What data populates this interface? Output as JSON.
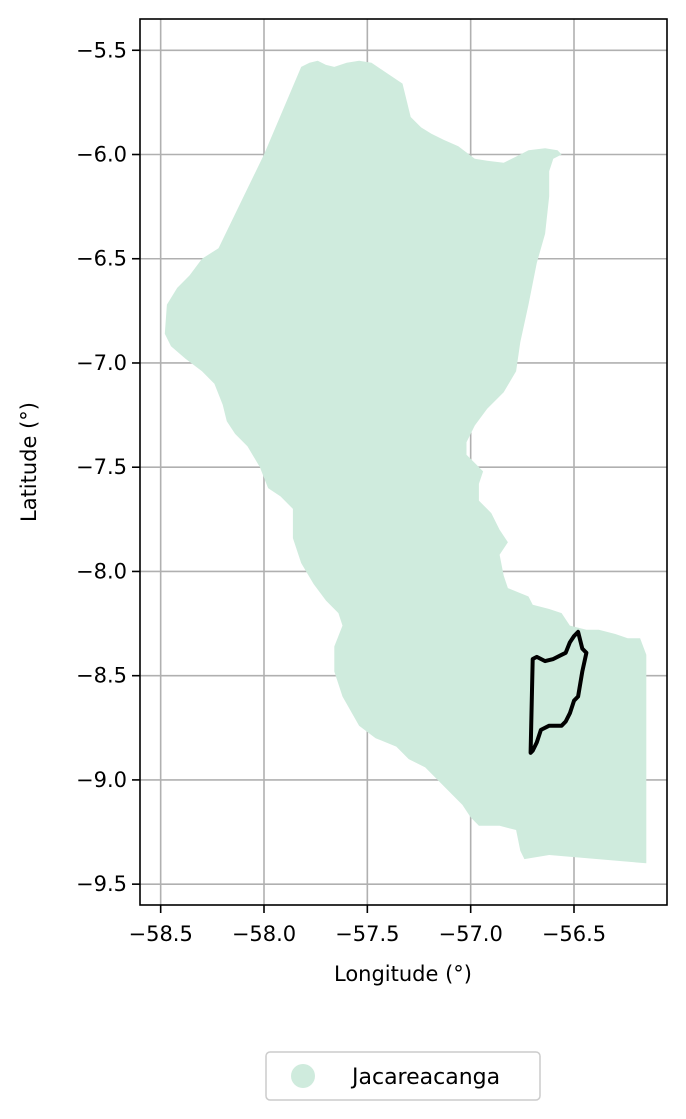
{
  "chart_data": {
    "type": "map",
    "xlabel": "Longitude (°)",
    "ylabel": "Latitude (°)",
    "xlim": [
      -58.6,
      -56.05
    ],
    "ylim": [
      -9.6,
      -5.35
    ],
    "xticks": [
      -58.5,
      -58.0,
      -57.5,
      -57.0,
      -56.5
    ],
    "xtick_labels": [
      "−58.5",
      "−58.0",
      "−57.5",
      "−57.0",
      "−56.5"
    ],
    "yticks": [
      -5.5,
      -6.0,
      -6.5,
      -7.0,
      -7.5,
      -8.0,
      -8.5,
      -9.0,
      -9.5
    ],
    "ytick_labels": [
      "−5.5",
      "−6.0",
      "−6.5",
      "−7.0",
      "−7.5",
      "−8.0",
      "−8.5",
      "−9.0",
      "−9.5"
    ],
    "grid": true,
    "legend_position": "bottom-center",
    "series": [
      {
        "name": "Jacareacanga",
        "kind": "filled-region",
        "color": "#cfebdd",
        "polygon": [
          [
            -57.82,
            -5.58
          ],
          [
            -57.78,
            -5.56
          ],
          [
            -57.74,
            -5.55
          ],
          [
            -57.7,
            -5.57
          ],
          [
            -57.66,
            -5.58
          ],
          [
            -57.6,
            -5.56
          ],
          [
            -57.54,
            -5.55
          ],
          [
            -57.48,
            -5.56
          ],
          [
            -57.42,
            -5.6
          ],
          [
            -57.33,
            -5.66
          ],
          [
            -57.29,
            -5.82
          ],
          [
            -57.24,
            -5.87
          ],
          [
            -57.19,
            -5.9
          ],
          [
            -57.13,
            -5.93
          ],
          [
            -57.06,
            -5.96
          ],
          [
            -56.98,
            -6.02
          ],
          [
            -56.92,
            -6.03
          ],
          [
            -56.84,
            -6.04
          ],
          [
            -56.76,
            -6.0
          ],
          [
            -56.72,
            -5.98
          ],
          [
            -56.64,
            -5.97
          ],
          [
            -56.58,
            -5.98
          ],
          [
            -56.56,
            -6.0
          ],
          [
            -56.6,
            -6.02
          ],
          [
            -56.62,
            -6.08
          ],
          [
            -56.62,
            -6.2
          ],
          [
            -56.64,
            -6.38
          ],
          [
            -56.68,
            -6.52
          ],
          [
            -56.72,
            -6.72
          ],
          [
            -56.76,
            -6.9
          ],
          [
            -56.78,
            -7.04
          ],
          [
            -56.84,
            -7.14
          ],
          [
            -56.92,
            -7.22
          ],
          [
            -56.98,
            -7.3
          ],
          [
            -57.02,
            -7.38
          ],
          [
            -57.02,
            -7.44
          ],
          [
            -56.98,
            -7.48
          ],
          [
            -56.94,
            -7.52
          ],
          [
            -56.96,
            -7.58
          ],
          [
            -56.96,
            -7.66
          ],
          [
            -56.9,
            -7.72
          ],
          [
            -56.86,
            -7.8
          ],
          [
            -56.82,
            -7.86
          ],
          [
            -56.86,
            -7.92
          ],
          [
            -56.84,
            -8.02
          ],
          [
            -56.82,
            -8.08
          ],
          [
            -56.72,
            -8.12
          ],
          [
            -56.7,
            -8.16
          ],
          [
            -56.62,
            -8.18
          ],
          [
            -56.56,
            -8.2
          ],
          [
            -56.52,
            -8.26
          ],
          [
            -56.44,
            -8.28
          ],
          [
            -56.38,
            -8.28
          ],
          [
            -56.3,
            -8.3
          ],
          [
            -56.24,
            -8.32
          ],
          [
            -56.18,
            -8.32
          ],
          [
            -56.15,
            -8.4
          ],
          [
            -56.15,
            -9.4
          ],
          [
            -56.62,
            -9.36
          ],
          [
            -56.74,
            -9.38
          ],
          [
            -56.76,
            -9.34
          ],
          [
            -56.78,
            -9.24
          ],
          [
            -56.86,
            -9.22
          ],
          [
            -56.96,
            -9.22
          ],
          [
            -57.0,
            -9.18
          ],
          [
            -57.04,
            -9.12
          ],
          [
            -57.12,
            -9.04
          ],
          [
            -57.16,
            -9.0
          ],
          [
            -57.22,
            -8.94
          ],
          [
            -57.3,
            -8.9
          ],
          [
            -57.36,
            -8.84
          ],
          [
            -57.46,
            -8.8
          ],
          [
            -57.54,
            -8.74
          ],
          [
            -57.62,
            -8.6
          ],
          [
            -57.66,
            -8.48
          ],
          [
            -57.66,
            -8.36
          ],
          [
            -57.62,
            -8.26
          ],
          [
            -57.64,
            -8.2
          ],
          [
            -57.7,
            -8.14
          ],
          [
            -57.76,
            -8.06
          ],
          [
            -57.82,
            -7.96
          ],
          [
            -57.86,
            -7.84
          ],
          [
            -57.86,
            -7.7
          ],
          [
            -57.92,
            -7.64
          ],
          [
            -57.98,
            -7.6
          ],
          [
            -58.02,
            -7.5
          ],
          [
            -58.08,
            -7.4
          ],
          [
            -58.14,
            -7.34
          ],
          [
            -58.18,
            -7.28
          ],
          [
            -58.2,
            -7.2
          ],
          [
            -58.24,
            -7.1
          ],
          [
            -58.3,
            -7.04
          ],
          [
            -58.38,
            -6.98
          ],
          [
            -58.45,
            -6.92
          ],
          [
            -58.48,
            -6.86
          ],
          [
            -58.47,
            -6.72
          ],
          [
            -58.42,
            -6.64
          ],
          [
            -58.36,
            -6.58
          ],
          [
            -58.3,
            -6.5
          ],
          [
            -58.22,
            -6.45
          ],
          [
            -58.0,
            -6.0
          ],
          [
            -57.82,
            -5.58
          ]
        ]
      },
      {
        "name": "",
        "kind": "outline",
        "color": "#000000",
        "polygon": [
          [
            -56.7,
            -8.42
          ],
          [
            -56.68,
            -8.41
          ],
          [
            -56.64,
            -8.43
          ],
          [
            -56.6,
            -8.42
          ],
          [
            -56.56,
            -8.4
          ],
          [
            -56.54,
            -8.39
          ],
          [
            -56.52,
            -8.34
          ],
          [
            -56.5,
            -8.31
          ],
          [
            -56.48,
            -8.29
          ],
          [
            -56.46,
            -8.37
          ],
          [
            -56.44,
            -8.39
          ],
          [
            -56.46,
            -8.48
          ],
          [
            -56.47,
            -8.54
          ],
          [
            -56.48,
            -8.6
          ],
          [
            -56.5,
            -8.62
          ],
          [
            -56.52,
            -8.68
          ],
          [
            -56.54,
            -8.72
          ],
          [
            -56.56,
            -8.74
          ],
          [
            -56.62,
            -8.74
          ],
          [
            -56.66,
            -8.76
          ],
          [
            -56.68,
            -8.82
          ],
          [
            -56.7,
            -8.86
          ],
          [
            -56.71,
            -8.87
          ],
          [
            -56.7,
            -8.42
          ]
        ]
      }
    ]
  }
}
